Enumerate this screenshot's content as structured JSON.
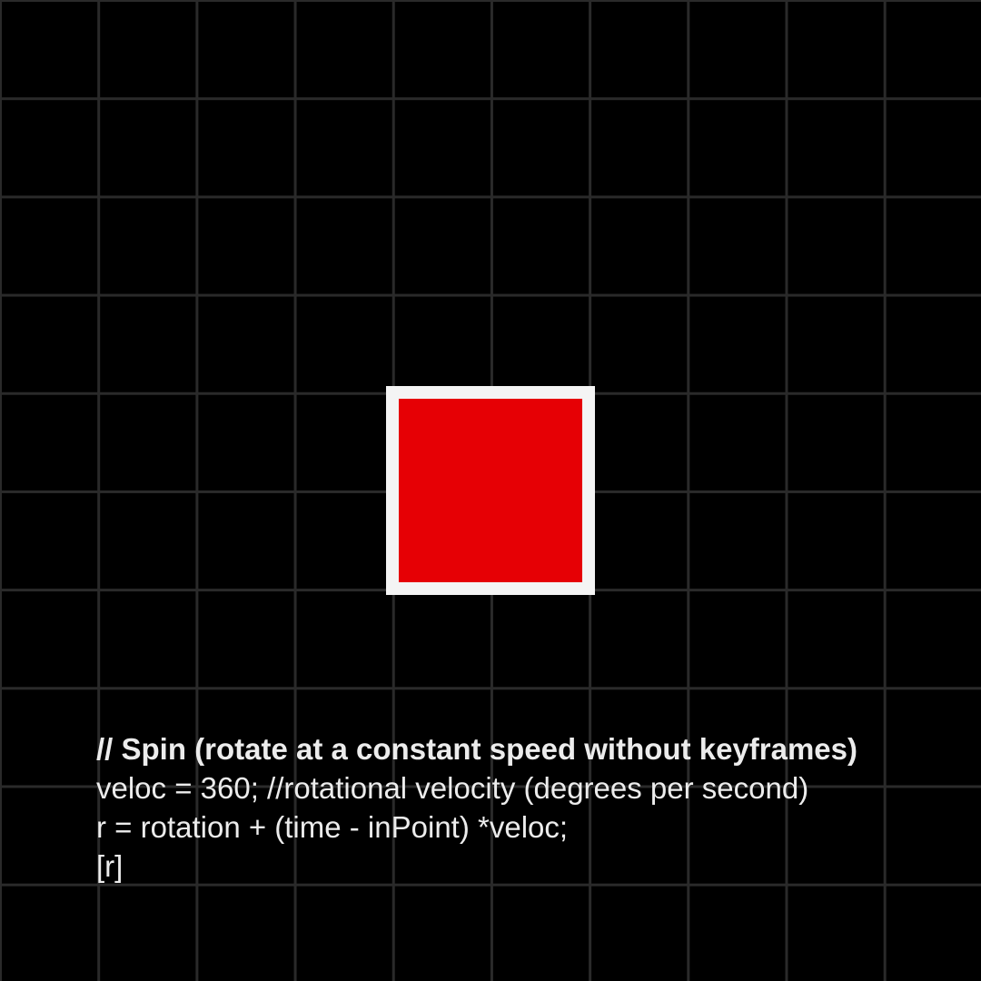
{
  "scene": {
    "background_color": "#000000",
    "grid_color": "#2a2a2a",
    "shape_fill": "#e60005",
    "shape_stroke": "#f4f4f4"
  },
  "code": {
    "comment": "// Spin (rotate at a constant speed without keyframes)",
    "line1": "veloc = 360; //rotational velocity (degrees per second)",
    "line2": "r = rotation + (time - inPoint) *veloc;",
    "line3": "[r]"
  }
}
